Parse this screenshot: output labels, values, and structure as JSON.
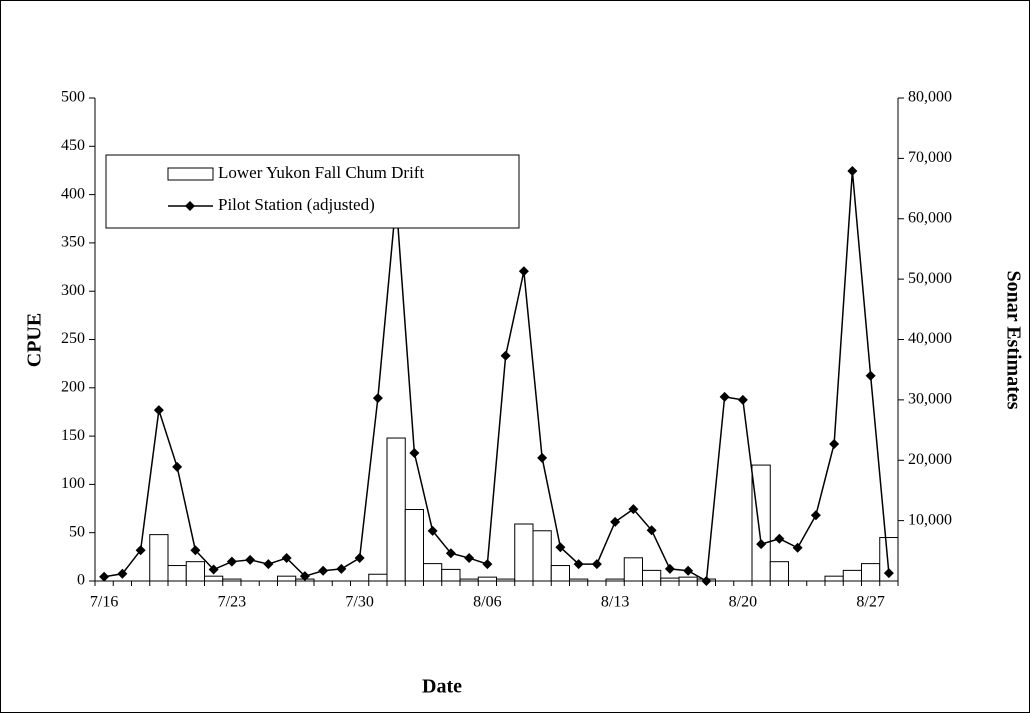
{
  "chart_data": {
    "type": "bar-line",
    "x_label": "Date",
    "y_label": "CPUE",
    "y2_label": "Sonar Estimates",
    "categories": [
      "7/16",
      null,
      null,
      null,
      null,
      null,
      null,
      "7/23",
      null,
      null,
      null,
      null,
      null,
      null,
      "7/30",
      null,
      null,
      null,
      null,
      null,
      null,
      "8/06",
      null,
      null,
      null,
      null,
      null,
      null,
      "8/13",
      null,
      null,
      null,
      null,
      null,
      null,
      "8/20",
      null,
      null,
      null,
      null,
      null,
      null,
      "8/27",
      null
    ],
    "series": [
      {
        "name": "Lower Yukon Fall Chum Drift",
        "type": "bar",
        "color": "#ffffff",
        "values": [
          0,
          0,
          0,
          48,
          16,
          20,
          5,
          2,
          0,
          0,
          5,
          2,
          0,
          0,
          0,
          7,
          148,
          74,
          18,
          12,
          2,
          4,
          2,
          59,
          52,
          16,
          2,
          0,
          2,
          24,
          11,
          3,
          4,
          2,
          0,
          0,
          120,
          20,
          0,
          0,
          5,
          11,
          18,
          45
        ]
      },
      {
        "name": "Pilot Station (adjusted)",
        "type": "line",
        "color": "#000000",
        "axis": "y2",
        "values": [
          700,
          1200,
          5100,
          28300,
          18900,
          5100,
          1900,
          3200,
          3500,
          2800,
          3800,
          800,
          1700,
          2000,
          3800,
          30300,
          63000,
          21200,
          8300,
          4600,
          3800,
          2800,
          37300,
          51300,
          20400,
          5600,
          2800,
          2800,
          9800,
          11900,
          8400,
          2000,
          1700,
          0,
          30500,
          30000,
          6100,
          7000,
          5500,
          10900,
          22700,
          67900,
          34000,
          1300
        ]
      }
    ],
    "ylim": [
      0,
      500
    ],
    "yticks": [
      0,
      50,
      100,
      150,
      200,
      250,
      300,
      350,
      400,
      450,
      500
    ],
    "y2lim": [
      0,
      80000
    ],
    "y2ticks": [
      {
        "value": 10000,
        "label": "10,000"
      },
      {
        "value": 20000,
        "label": "20,000"
      },
      {
        "value": 30000,
        "label": "30,000"
      },
      {
        "value": 40000,
        "label": "40,000"
      },
      {
        "value": 50000,
        "label": "50,000"
      },
      {
        "value": 60000,
        "label": "60,000"
      },
      {
        "value": 70000,
        "label": "70,000"
      },
      {
        "value": 80000,
        "label": "80,000"
      }
    ],
    "legend": "upper-left",
    "grid": false
  }
}
